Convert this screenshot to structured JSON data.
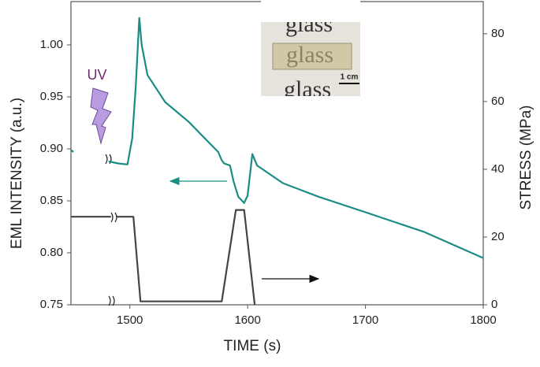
{
  "chart_data": {
    "type": "line",
    "xlabel": "TIME (s)",
    "ylabel": "EML INTENSITY (a.u.)",
    "y2label": "STRESS (MPa)",
    "annotations": [
      "UV",
      "glass",
      "glass",
      "glass",
      "1 cm"
    ],
    "xlim": [
      1450,
      1800
    ],
    "xticks": [
      1500,
      1600,
      1700,
      1800
    ],
    "ylim": [
      0.75,
      1.0417
    ],
    "yticks": [
      {
        "value": 0.75,
        "label": "0.75"
      },
      {
        "value": 0.8,
        "label": "0.80"
      },
      {
        "value": 0.85,
        "label": "0.85"
      },
      {
        "value": 0.9,
        "label": "0.90"
      },
      {
        "value": 0.95,
        "label": "0.95"
      },
      {
        "value": 1.0,
        "label": "1.00"
      }
    ],
    "y2lim": [
      0,
      89.5
    ],
    "y2ticks": [
      0,
      20,
      40,
      60,
      80
    ],
    "series": [
      {
        "name": "EML intensity",
        "color": "#1a8c84",
        "x": [
          1450,
          1452,
          1467,
          1482,
          1490,
          1498,
          1502,
          1505,
          1508,
          1510,
          1515,
          1530,
          1550,
          1575,
          1578,
          1580,
          1585,
          1588,
          1592,
          1597,
          1600,
          1604,
          1608,
          1630,
          1660,
          1700,
          1750,
          1800
        ],
        "values": [
          0.899,
          0.897,
          null,
          0.888,
          0.886,
          0.885,
          0.91,
          0.96,
          1.026,
          1.0,
          0.971,
          0.945,
          0.926,
          0.897,
          0.889,
          0.886,
          0.884,
          0.869,
          0.854,
          0.848,
          0.855,
          0.895,
          0.884,
          0.867,
          0.854,
          0.839,
          0.82,
          0.795
        ]
      },
      {
        "name": "Stress",
        "color": "#444444",
        "axis": "y2",
        "x": [
          1450,
          1484,
          1486,
          1489,
          1503,
          1509,
          1578,
          1590,
          1597,
          1606
        ],
        "values": [
          26,
          26,
          null,
          26,
          26,
          1,
          1,
          28,
          28,
          0
        ]
      }
    ]
  }
}
